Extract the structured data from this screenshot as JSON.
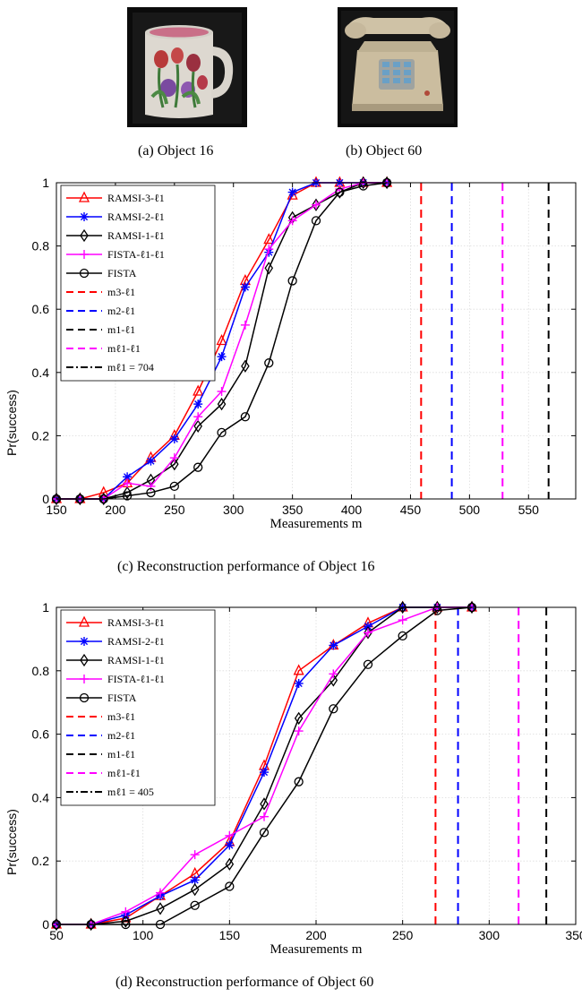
{
  "captions": {
    "a": "(a)  Object 16",
    "b": "(b)  Object 60",
    "c": "(c)  Reconstruction performance of Object 16",
    "d": "(d)  Reconstruction performance of Object 60"
  },
  "chart_data": [
    {
      "type": "line",
      "xlabel": "Measurements m",
      "ylabel": "Pr(success)",
      "xlim": [
        150,
        590
      ],
      "ylim": [
        0,
        1
      ],
      "xticks": [
        150,
        200,
        250,
        300,
        350,
        400,
        450,
        500,
        550
      ],
      "yticks": [
        0,
        0.2,
        0.4,
        0.6,
        0.8,
        1
      ],
      "grid": true,
      "legend_position": "top-left",
      "x": [
        150,
        170,
        190,
        210,
        230,
        250,
        270,
        290,
        310,
        330,
        350,
        370,
        390,
        410,
        430
      ],
      "series": [
        {
          "name": "RAMSI-3-ℓ1",
          "color": "#ff0000",
          "marker": "triangle",
          "values": [
            0,
            0,
            0.02,
            0.05,
            0.13,
            0.2,
            0.34,
            0.5,
            0.69,
            0.82,
            0.96,
            1,
            1,
            1,
            1
          ]
        },
        {
          "name": "RAMSI-2-ℓ1",
          "color": "#0000ff",
          "marker": "asterisk",
          "values": [
            0,
            0,
            0,
            0.07,
            0.12,
            0.19,
            0.3,
            0.45,
            0.67,
            0.78,
            0.97,
            1,
            1,
            1,
            1
          ]
        },
        {
          "name": "RAMSI-1-ℓ1",
          "color": "#000000",
          "marker": "diamond",
          "values": [
            0,
            0,
            0,
            0.02,
            0.06,
            0.11,
            0.23,
            0.3,
            0.42,
            0.73,
            0.89,
            0.93,
            0.97,
            1,
            1
          ]
        },
        {
          "name": "FISTA-ℓ1-ℓ1",
          "color": "#ff00ff",
          "marker": "plus",
          "values": [
            0,
            0,
            0,
            0.05,
            0.04,
            0.13,
            0.26,
            0.34,
            0.55,
            0.79,
            0.88,
            0.93,
            0.98,
            1,
            1
          ]
        },
        {
          "name": "FISTA",
          "color": "#000000",
          "marker": "circle",
          "values": [
            0,
            0,
            0,
            0.01,
            0.02,
            0.04,
            0.1,
            0.21,
            0.26,
            0.43,
            0.69,
            0.88,
            0.97,
            0.99,
            1
          ]
        }
      ],
      "vlines": [
        {
          "name": "m3-ℓ1",
          "x": 459,
          "color": "#ff0000",
          "style": "dashed"
        },
        {
          "name": "m2-ℓ1",
          "x": 485,
          "color": "#0000ff",
          "style": "dashed"
        },
        {
          "name": "m1-ℓ1",
          "x": 567,
          "color": "#000000",
          "style": "dashed"
        },
        {
          "name": "mℓ1-ℓ1",
          "x": 528,
          "color": "#ff00ff",
          "style": "dashed"
        },
        {
          "name": "mℓ1 = 704",
          "x": 704,
          "color": "#000000",
          "style": "dashdot"
        }
      ]
    },
    {
      "type": "line",
      "xlabel": "Measurements m",
      "ylabel": "Pr(success)",
      "xlim": [
        50,
        350
      ],
      "ylim": [
        0,
        1
      ],
      "xticks": [
        50,
        100,
        150,
        200,
        250,
        300,
        350
      ],
      "yticks": [
        0,
        0.2,
        0.4,
        0.6,
        0.8,
        1
      ],
      "grid": true,
      "legend_position": "top-left",
      "x": [
        50,
        70,
        90,
        110,
        130,
        150,
        170,
        190,
        210,
        230,
        250,
        270,
        290
      ],
      "series": [
        {
          "name": "RAMSI-3-ℓ1",
          "color": "#ff0000",
          "marker": "triangle",
          "values": [
            0,
            0,
            0.02,
            0.09,
            0.16,
            0.26,
            0.5,
            0.8,
            0.88,
            0.95,
            1,
            1,
            1
          ]
        },
        {
          "name": "RAMSI-2-ℓ1",
          "color": "#0000ff",
          "marker": "asterisk",
          "values": [
            0,
            0,
            0.03,
            0.09,
            0.14,
            0.25,
            0.48,
            0.76,
            0.88,
            0.94,
            1,
            1,
            1
          ]
        },
        {
          "name": "RAMSI-1-ℓ1",
          "color": "#000000",
          "marker": "diamond",
          "values": [
            0,
            0,
            0.01,
            0.05,
            0.11,
            0.19,
            0.38,
            0.65,
            0.77,
            0.92,
            1,
            1,
            1
          ]
        },
        {
          "name": "FISTA-ℓ1-ℓ1",
          "color": "#ff00ff",
          "marker": "plus",
          "values": [
            0,
            0,
            0.04,
            0.1,
            0.22,
            0.28,
            0.34,
            0.61,
            0.79,
            0.92,
            0.96,
            1,
            1
          ]
        },
        {
          "name": "FISTA",
          "color": "#000000",
          "marker": "circle",
          "values": [
            0,
            0,
            0,
            0,
            0.06,
            0.12,
            0.29,
            0.45,
            0.68,
            0.82,
            0.91,
            0.99,
            1
          ]
        }
      ],
      "vlines": [
        {
          "name": "m3-ℓ1",
          "x": 269,
          "color": "#ff0000",
          "style": "dashed"
        },
        {
          "name": "m2-ℓ1",
          "x": 282,
          "color": "#0000ff",
          "style": "dashed"
        },
        {
          "name": "m1-ℓ1",
          "x": 333,
          "color": "#000000",
          "style": "dashed"
        },
        {
          "name": "mℓ1-ℓ1",
          "x": 317,
          "color": "#ff00ff",
          "style": "dashed"
        },
        {
          "name": "mℓ1 = 405",
          "x": 405,
          "color": "#000000",
          "style": "dashdot"
        }
      ]
    }
  ]
}
